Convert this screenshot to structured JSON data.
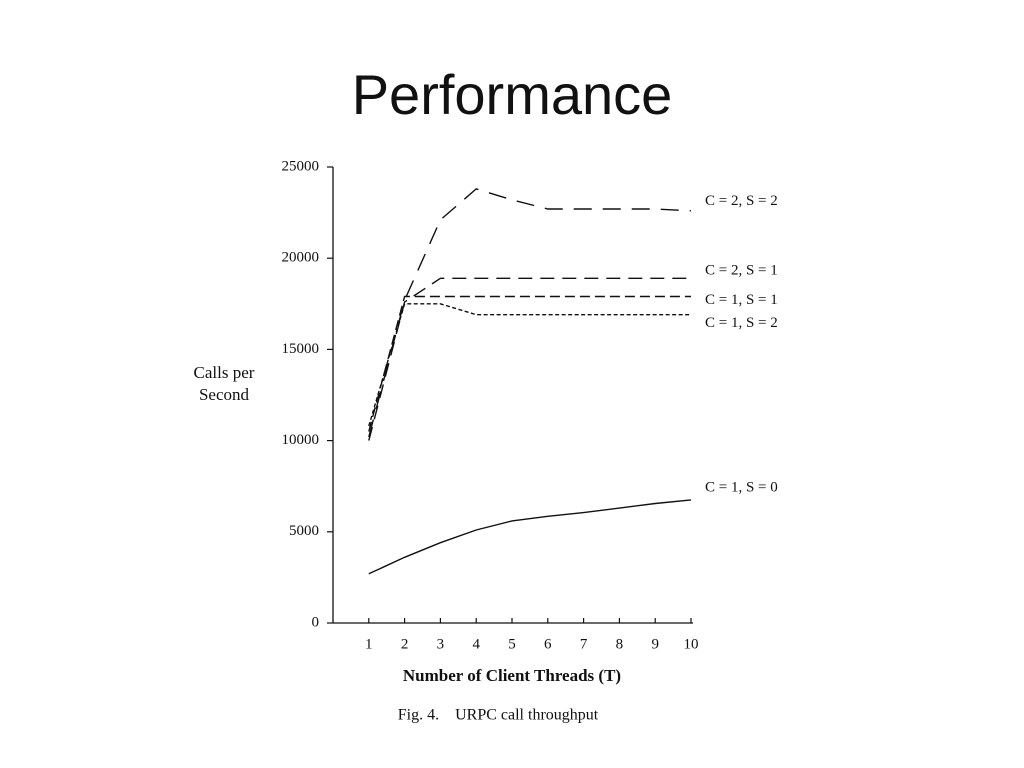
{
  "slide": {
    "title": "Performance"
  },
  "chart_data": {
    "type": "line",
    "xlabel": "Number of Client Threads (T)",
    "ylabel": "Calls per Second",
    "caption": "Fig. 4.    URPC call throughput",
    "x": [
      1,
      2,
      3,
      4,
      5,
      6,
      7,
      8,
      9,
      10
    ],
    "xlim": [
      0,
      10
    ],
    "xticks": [
      1,
      2,
      3,
      4,
      5,
      6,
      7,
      8,
      9,
      10
    ],
    "ylim": [
      0,
      25000
    ],
    "yticks": [
      0,
      5000,
      10000,
      15000,
      20000,
      25000
    ],
    "grid": false,
    "series": [
      {
        "name": "C = 2, S = 2",
        "color": "#111111",
        "style": "long-dash",
        "values": [
          10200,
          17700,
          22100,
          23800,
          23200,
          22700,
          22700,
          22700,
          22700,
          22600
        ]
      },
      {
        "name": "C = 2, S = 1",
        "color": "#111111",
        "style": "dash",
        "values": [
          10000,
          17600,
          18900,
          18900,
          18900,
          18900,
          18900,
          18900,
          18900,
          18900
        ]
      },
      {
        "name": "C = 1, S = 1",
        "color": "#111111",
        "style": "medium-dash",
        "values": [
          10500,
          17900,
          17900,
          17900,
          17900,
          17900,
          17900,
          17900,
          17900,
          17900
        ]
      },
      {
        "name": "C = 1, S = 2",
        "color": "#111111",
        "style": "short-dash",
        "values": [
          10800,
          17500,
          17500,
          16900,
          16900,
          16900,
          16900,
          16900,
          16900,
          16900
        ]
      },
      {
        "name": "C = 1, S = 0",
        "color": "#111111",
        "style": "solid",
        "values": [
          2700,
          3600,
          4400,
          5100,
          5600,
          5850,
          6050,
          6300,
          6550,
          6750
        ]
      }
    ]
  }
}
